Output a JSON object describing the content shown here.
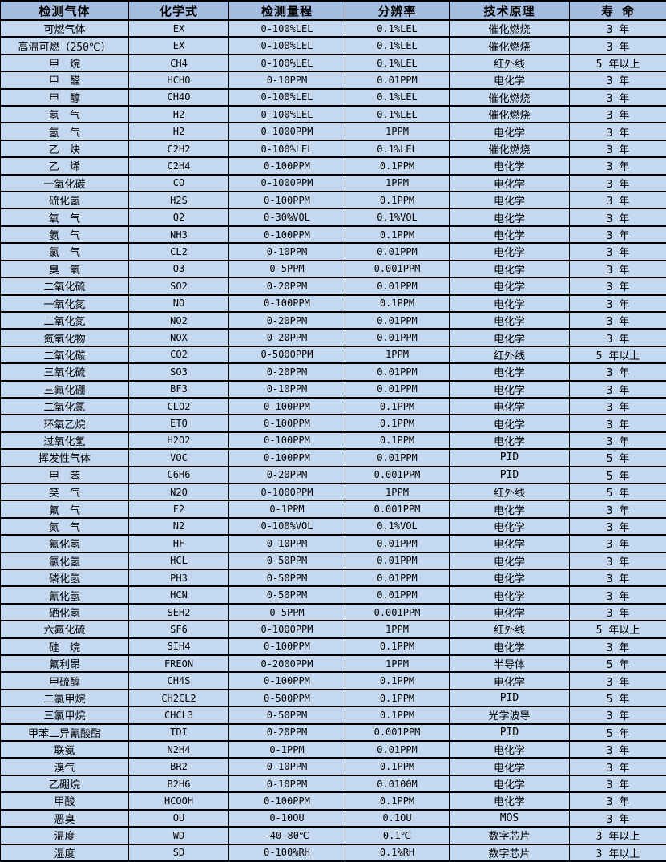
{
  "colors": {
    "header_bg": "#a3bcdf",
    "row_bg": "#c4d8f0",
    "border": "#000000",
    "text": "#000000"
  },
  "table": {
    "headers": [
      "检测气体",
      "化学式",
      "检测量程",
      "分辨率",
      "技术原理",
      "寿 命"
    ],
    "column_names": [
      "gas-name",
      "chemical-formula",
      "detection-range",
      "resolution",
      "technical-principle",
      "lifespan"
    ],
    "rows": [
      [
        "可燃气体",
        "EX",
        "0-100%LEL",
        "0.1%LEL",
        "催化燃烧",
        "3 年"
      ],
      [
        "高温可燃（250℃）",
        "EX",
        "0-100%LEL",
        "0.1%LEL",
        "催化燃烧",
        "3 年"
      ],
      [
        "甲　烷",
        "CH4",
        "0-100%LEL",
        "0.1%LEL",
        "红外线",
        "5 年以上"
      ],
      [
        "甲　醛",
        "HCHO",
        "0-10PPM",
        "0.01PPM",
        "电化学",
        "3 年"
      ],
      [
        "甲　醇",
        "CH4O",
        "0-100%LEL",
        "0.1%LEL",
        "催化燃烧",
        "3 年"
      ],
      [
        "氢　气",
        "H2",
        "0-100%LEL",
        "0.1%LEL",
        "催化燃烧",
        "3 年"
      ],
      [
        "氢　气",
        "H2",
        "0-1000PPM",
        "1PPM",
        "电化学",
        "3 年"
      ],
      [
        "乙　炔",
        "C2H2",
        "0-100%LEL",
        "0.1%LEL",
        "催化燃烧",
        "3 年"
      ],
      [
        "乙　烯",
        "C2H4",
        "0-100PPM",
        "0.1PPM",
        "电化学",
        "3 年"
      ],
      [
        "一氧化碳",
        "CO",
        "0-1000PPM",
        "1PPM",
        "电化学",
        "3 年"
      ],
      [
        "硫化氢",
        "H2S",
        "0-100PPM",
        "0.1PPM",
        "电化学",
        "3 年"
      ],
      [
        "氧　气",
        "O2",
        "0-30%VOL",
        "0.1%VOL",
        "电化学",
        "3 年"
      ],
      [
        "氨　气",
        "NH3",
        "0-100PPM",
        "0.1PPM",
        "电化学",
        "3 年"
      ],
      [
        "氯　气",
        "CL2",
        "0-10PPM",
        "0.01PPM",
        "电化学",
        "3 年"
      ],
      [
        "臭　氧",
        "O3",
        "0-5PPM",
        "0.001PPM",
        "电化学",
        "3 年"
      ],
      [
        "二氧化硫",
        "SO2",
        "0-20PPM",
        "0.01PPM",
        "电化学",
        "3 年"
      ],
      [
        "一氧化氮",
        "NO",
        "0-100PPM",
        "0.1PPM",
        "电化学",
        "3 年"
      ],
      [
        "二氧化氮",
        "NO2",
        "0-20PPM",
        "0.01PPM",
        "电化学",
        "3 年"
      ],
      [
        "氮氧化物",
        "NOX",
        "0-20PPM",
        "0.01PPM",
        "电化学",
        "3 年"
      ],
      [
        "二氧化碳",
        "CO2",
        "0-5000PPM",
        "1PPM",
        "红外线",
        "5 年以上"
      ],
      [
        "三氧化硫",
        "SO3",
        "0-20PPM",
        "0.01PPM",
        "电化学",
        "3 年"
      ],
      [
        "三氟化硼",
        "BF3",
        "0-10PPM",
        "0.01PPM",
        "电化学",
        "3 年"
      ],
      [
        "二氧化氯",
        "CLO2",
        "0-100PPM",
        "0.1PPM",
        "电化学",
        "3 年"
      ],
      [
        "环氧乙烷",
        "ETO",
        "0-100PPM",
        "0.1PPM",
        "电化学",
        "3 年"
      ],
      [
        "过氧化氢",
        "H2O2",
        "0-100PPM",
        "0.1PPM",
        "电化学",
        "3 年"
      ],
      [
        "挥发性气体",
        "VOC",
        "0-100PPM",
        "0.01PPM",
        "PID",
        "5 年"
      ],
      [
        "甲　苯",
        "C6H6",
        "0-20PPM",
        "0.001PPM",
        "PID",
        "5 年"
      ],
      [
        "笑　气",
        "N2O",
        "0-1000PPM",
        "1PPM",
        "红外线",
        "5 年"
      ],
      [
        "氟　气",
        "F2",
        "0-1PPM",
        "0.001PPM",
        "电化学",
        "3 年"
      ],
      [
        "氮　气",
        "N2",
        "0-100%VOL",
        "0.1%VOL",
        "电化学",
        "3 年"
      ],
      [
        "氟化氢",
        "HF",
        "0-10PPM",
        "0.01PPM",
        "电化学",
        "3 年"
      ],
      [
        "氯化氢",
        "HCL",
        "0-50PPM",
        "0.01PPM",
        "电化学",
        "3 年"
      ],
      [
        "磷化氢",
        "PH3",
        "0-50PPM",
        "0.01PPM",
        "电化学",
        "3 年"
      ],
      [
        "氰化氢",
        "HCN",
        "0-50PPM",
        "0.01PPM",
        "电化学",
        "3 年"
      ],
      [
        "硒化氢",
        "SEH2",
        "0-5PPM",
        "0.001PPM",
        "电化学",
        "3 年"
      ],
      [
        "六氟化硫",
        "SF6",
        "0-1000PPM",
        "1PPM",
        "红外线",
        "5 年以上"
      ],
      [
        "硅　烷",
        "SIH4",
        "0-100PPM",
        "0.1PPM",
        "电化学",
        "3 年"
      ],
      [
        "氟利昂",
        "FREON",
        "0-2000PPM",
        "1PPM",
        "半导体",
        "5 年"
      ],
      [
        "甲硫醇",
        "CH4S",
        "0-100PPM",
        "0.1PPM",
        "电化学",
        "3 年"
      ],
      [
        "二氯甲烷",
        "CH2CL2",
        "0-500PPM",
        "0.1PPM",
        "PID",
        "5 年"
      ],
      [
        "三氯甲烷",
        "CHCL3",
        "0-50PPM",
        "0.1PPM",
        "光学波导",
        "3 年"
      ],
      [
        "甲苯二异氰酸酯",
        "TDI",
        "0-20PPM",
        "0.001PPM",
        "PID",
        "5 年"
      ],
      [
        "联氨",
        "N2H4",
        "0-1PPM",
        "0.01PPM",
        "电化学",
        "3 年"
      ],
      [
        "溴气",
        "BR2",
        "0-10PPM",
        "0.1PPM",
        "电化学",
        "3 年"
      ],
      [
        "乙硼烷",
        "B2H6",
        "0-10PPM",
        "0.0100M",
        "电化学",
        "3 年"
      ],
      [
        "甲酸",
        "HCOOH",
        "0-100PPM",
        "0.1PPM",
        "电化学",
        "3 年"
      ],
      [
        "恶臭",
        "OU",
        "0-10OU",
        "0.1OU",
        "MOS",
        "3 年"
      ],
      [
        "温度",
        "WD",
        "-40—80℃",
        "0.1℃",
        "数字芯片",
        "3 年以上"
      ],
      [
        "湿度",
        "SD",
        "0-100%RH",
        "0.1%RH",
        "数字芯片",
        "3 年以上"
      ]
    ]
  }
}
